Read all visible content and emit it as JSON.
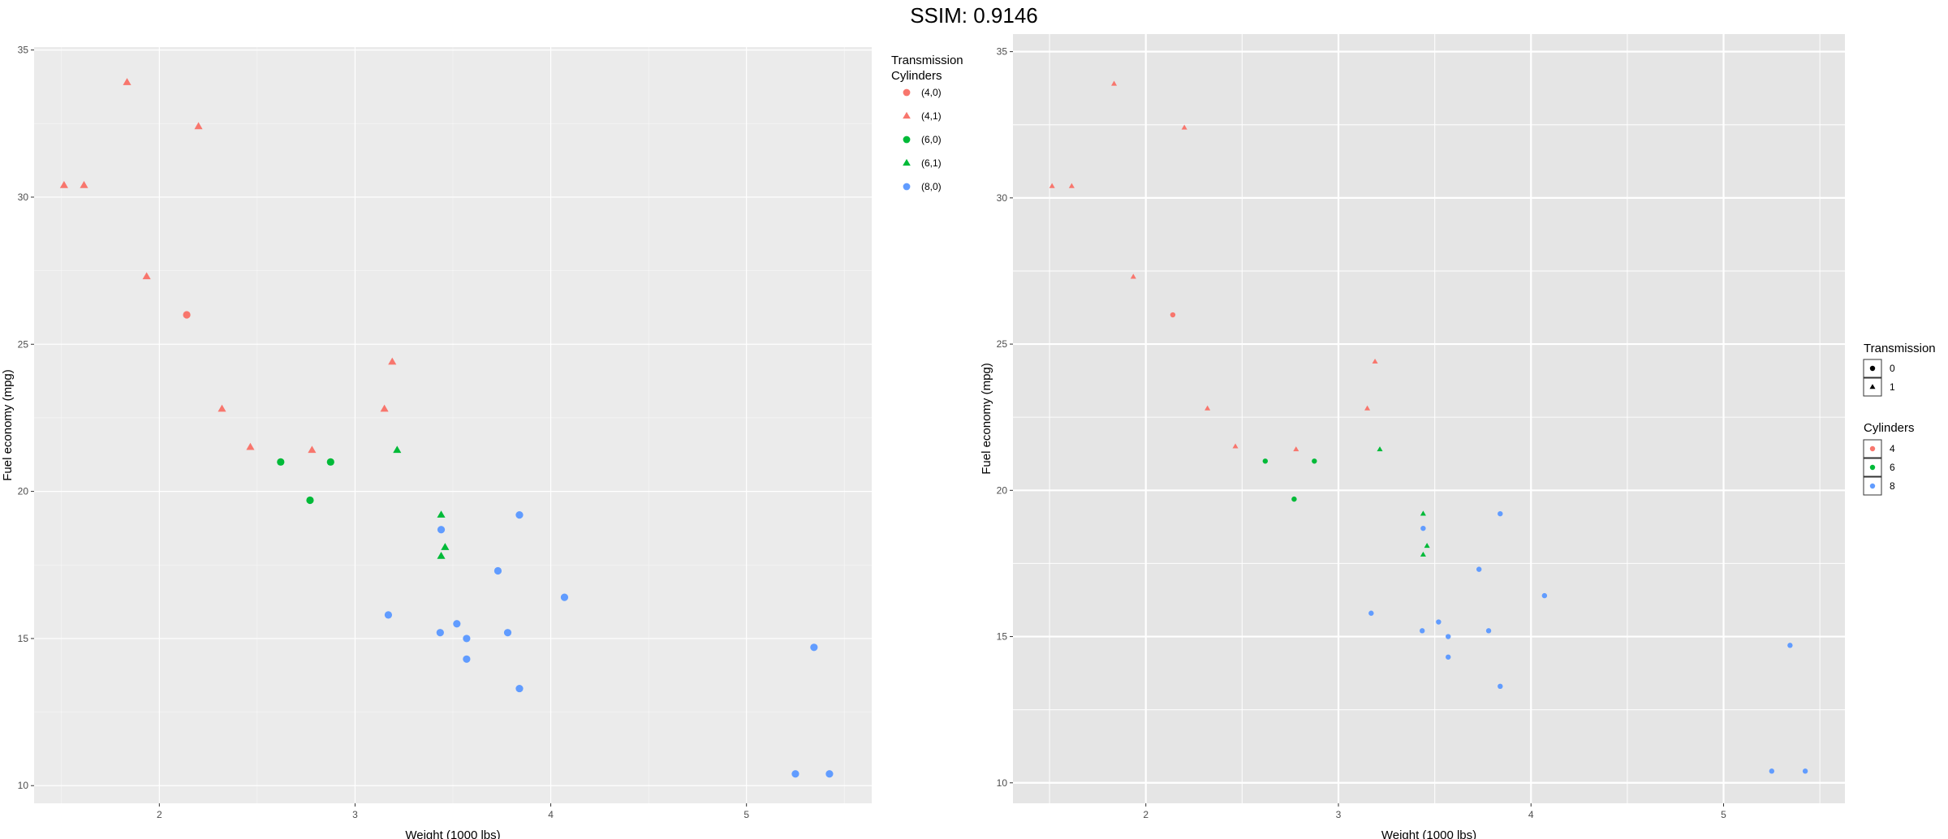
{
  "title": "SSIM: 0.9146",
  "colors": {
    "cyl4": "#F8766D",
    "cyl6": "#00BA38",
    "cyl8": "#619CFF",
    "panel": "#EBEBEB",
    "panel_right": "#E5E5E5"
  },
  "chart_data": [
    {
      "type": "scatter",
      "xlabel": "Weight (1000 lbs)",
      "ylabel": "Fuel economy (mpg)",
      "xlim": [
        1.36,
        5.64
      ],
      "ylim": [
        9.4,
        35.1
      ],
      "x_ticks": [
        2,
        3,
        4,
        5
      ],
      "y_ticks": [
        10,
        15,
        20,
        25,
        30,
        35
      ],
      "grid": true,
      "legend": {
        "placement": "right",
        "title_line1": "Transmission",
        "title_line2": "Cylinders",
        "entries": [
          {
            "label": "(4,0)",
            "cyl": 4,
            "am": 0
          },
          {
            "label": "(4,1)",
            "cyl": 4,
            "am": 1
          },
          {
            "label": "(6,0)",
            "cyl": 6,
            "am": 0
          },
          {
            "label": "(6,1)",
            "cyl": 6,
            "am": 1
          },
          {
            "label": "(8,0)",
            "cyl": 8,
            "am": 0
          }
        ]
      },
      "points": [
        {
          "x": 1.513,
          "y": 30.4,
          "cyl": 4,
          "am": 1
        },
        {
          "x": 1.615,
          "y": 30.4,
          "cyl": 4,
          "am": 1
        },
        {
          "x": 1.835,
          "y": 33.9,
          "cyl": 4,
          "am": 1
        },
        {
          "x": 1.935,
          "y": 27.3,
          "cyl": 4,
          "am": 1
        },
        {
          "x": 2.14,
          "y": 26.0,
          "cyl": 4,
          "am": 0
        },
        {
          "x": 2.2,
          "y": 32.4,
          "cyl": 4,
          "am": 1
        },
        {
          "x": 2.32,
          "y": 22.8,
          "cyl": 4,
          "am": 1
        },
        {
          "x": 2.465,
          "y": 21.5,
          "cyl": 4,
          "am": 1
        },
        {
          "x": 2.78,
          "y": 21.4,
          "cyl": 4,
          "am": 1
        },
        {
          "x": 3.15,
          "y": 22.8,
          "cyl": 4,
          "am": 1
        },
        {
          "x": 3.19,
          "y": 24.4,
          "cyl": 4,
          "am": 1
        },
        {
          "x": 2.62,
          "y": 21.0,
          "cyl": 6,
          "am": 0
        },
        {
          "x": 2.875,
          "y": 21.0,
          "cyl": 6,
          "am": 0
        },
        {
          "x": 2.77,
          "y": 19.7,
          "cyl": 6,
          "am": 0
        },
        {
          "x": 3.215,
          "y": 21.4,
          "cyl": 6,
          "am": 1
        },
        {
          "x": 3.44,
          "y": 19.2,
          "cyl": 6,
          "am": 1
        },
        {
          "x": 3.46,
          "y": 18.1,
          "cyl": 6,
          "am": 1
        },
        {
          "x": 3.44,
          "y": 17.8,
          "cyl": 6,
          "am": 1
        },
        {
          "x": 3.44,
          "y": 18.7,
          "cyl": 8,
          "am": 0
        },
        {
          "x": 3.84,
          "y": 19.2,
          "cyl": 8,
          "am": 0
        },
        {
          "x": 3.73,
          "y": 17.3,
          "cyl": 8,
          "am": 0
        },
        {
          "x": 3.17,
          "y": 15.8,
          "cyl": 8,
          "am": 0
        },
        {
          "x": 3.435,
          "y": 15.2,
          "cyl": 8,
          "am": 0
        },
        {
          "x": 3.52,
          "y": 15.5,
          "cyl": 8,
          "am": 0
        },
        {
          "x": 3.57,
          "y": 15.0,
          "cyl": 8,
          "am": 0
        },
        {
          "x": 3.57,
          "y": 14.3,
          "cyl": 8,
          "am": 0
        },
        {
          "x": 3.78,
          "y": 15.2,
          "cyl": 8,
          "am": 0
        },
        {
          "x": 4.07,
          "y": 16.4,
          "cyl": 8,
          "am": 0
        },
        {
          "x": 3.84,
          "y": 13.3,
          "cyl": 8,
          "am": 0
        },
        {
          "x": 5.345,
          "y": 14.7,
          "cyl": 8,
          "am": 0
        },
        {
          "x": 5.25,
          "y": 10.4,
          "cyl": 8,
          "am": 0
        },
        {
          "x": 5.424,
          "y": 10.4,
          "cyl": 8,
          "am": 0
        }
      ]
    },
    {
      "type": "scatter",
      "xlabel": "Weight (1000 lbs)",
      "ylabel": "Fuel economy (mpg)",
      "xlim": [
        1.31,
        5.63
      ],
      "ylim": [
        9.3,
        35.6
      ],
      "x_ticks": [
        2,
        3,
        4,
        5
      ],
      "y_ticks": [
        10,
        15,
        20,
        25,
        30,
        35
      ],
      "grid": true,
      "legend": {
        "placement": "right",
        "shape_title": "Transmission",
        "shape_entries": [
          {
            "label": "0",
            "am": 0
          },
          {
            "label": "1",
            "am": 1
          }
        ],
        "color_title": "Cylinders",
        "color_entries": [
          {
            "label": "4",
            "cyl": 4
          },
          {
            "label": "6",
            "cyl": 6
          },
          {
            "label": "8",
            "cyl": 8
          }
        ]
      },
      "points": [
        {
          "x": 1.513,
          "y": 30.4,
          "cyl": 4,
          "am": 1
        },
        {
          "x": 1.615,
          "y": 30.4,
          "cyl": 4,
          "am": 1
        },
        {
          "x": 1.835,
          "y": 33.9,
          "cyl": 4,
          "am": 1
        },
        {
          "x": 1.935,
          "y": 27.3,
          "cyl": 4,
          "am": 1
        },
        {
          "x": 2.14,
          "y": 26.0,
          "cyl": 4,
          "am": 0
        },
        {
          "x": 2.2,
          "y": 32.4,
          "cyl": 4,
          "am": 1
        },
        {
          "x": 2.32,
          "y": 22.8,
          "cyl": 4,
          "am": 1
        },
        {
          "x": 2.465,
          "y": 21.5,
          "cyl": 4,
          "am": 1
        },
        {
          "x": 2.78,
          "y": 21.4,
          "cyl": 4,
          "am": 1
        },
        {
          "x": 3.15,
          "y": 22.8,
          "cyl": 4,
          "am": 1
        },
        {
          "x": 3.19,
          "y": 24.4,
          "cyl": 4,
          "am": 1
        },
        {
          "x": 2.62,
          "y": 21.0,
          "cyl": 6,
          "am": 0
        },
        {
          "x": 2.875,
          "y": 21.0,
          "cyl": 6,
          "am": 0
        },
        {
          "x": 2.77,
          "y": 19.7,
          "cyl": 6,
          "am": 0
        },
        {
          "x": 3.215,
          "y": 21.4,
          "cyl": 6,
          "am": 1
        },
        {
          "x": 3.44,
          "y": 19.2,
          "cyl": 6,
          "am": 1
        },
        {
          "x": 3.46,
          "y": 18.1,
          "cyl": 6,
          "am": 1
        },
        {
          "x": 3.44,
          "y": 17.8,
          "cyl": 6,
          "am": 1
        },
        {
          "x": 3.44,
          "y": 18.7,
          "cyl": 8,
          "am": 0
        },
        {
          "x": 3.84,
          "y": 19.2,
          "cyl": 8,
          "am": 0
        },
        {
          "x": 3.73,
          "y": 17.3,
          "cyl": 8,
          "am": 0
        },
        {
          "x": 3.17,
          "y": 15.8,
          "cyl": 8,
          "am": 0
        },
        {
          "x": 3.435,
          "y": 15.2,
          "cyl": 8,
          "am": 0
        },
        {
          "x": 3.52,
          "y": 15.5,
          "cyl": 8,
          "am": 0
        },
        {
          "x": 3.57,
          "y": 15.0,
          "cyl": 8,
          "am": 0
        },
        {
          "x": 3.57,
          "y": 14.3,
          "cyl": 8,
          "am": 0
        },
        {
          "x": 3.78,
          "y": 15.2,
          "cyl": 8,
          "am": 0
        },
        {
          "x": 4.07,
          "y": 16.4,
          "cyl": 8,
          "am": 0
        },
        {
          "x": 3.84,
          "y": 13.3,
          "cyl": 8,
          "am": 0
        },
        {
          "x": 5.345,
          "y": 14.7,
          "cyl": 8,
          "am": 0
        },
        {
          "x": 5.25,
          "y": 10.4,
          "cyl": 8,
          "am": 0
        },
        {
          "x": 5.424,
          "y": 10.4,
          "cyl": 8,
          "am": 0
        }
      ]
    }
  ]
}
